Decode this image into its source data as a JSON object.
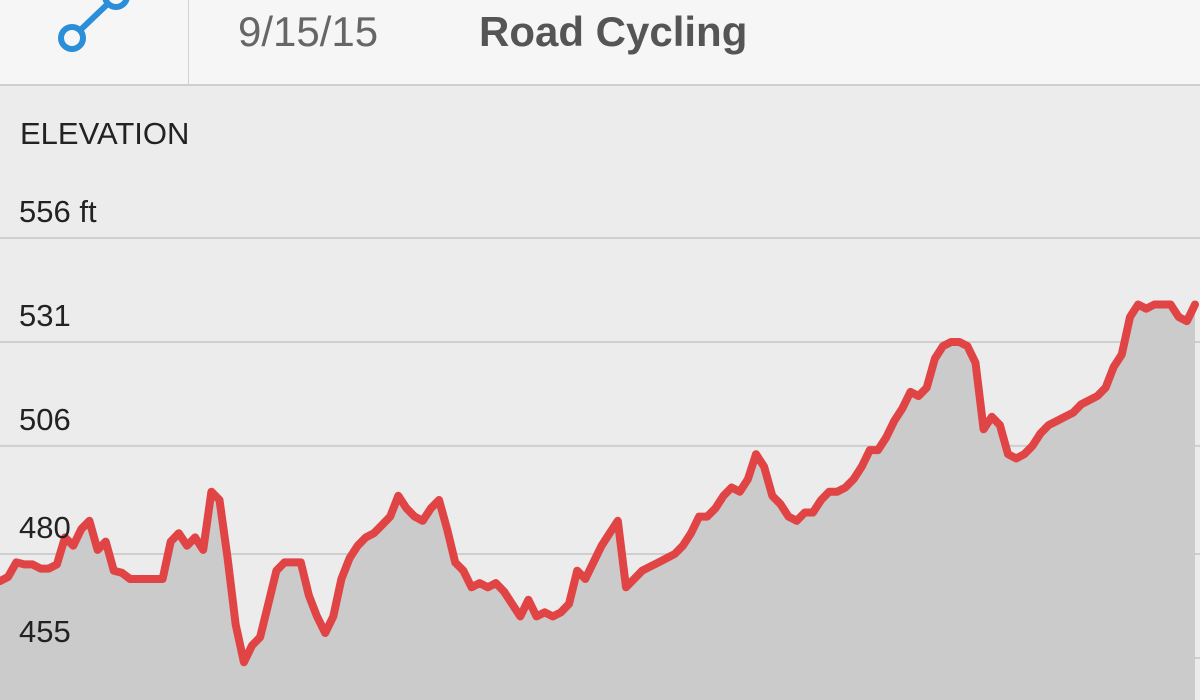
{
  "header": {
    "date": "9/15/15",
    "activity": "Road Cycling",
    "icon": "route-icon"
  },
  "elevation": {
    "title": "ELEVATION"
  },
  "chart_data": {
    "type": "area",
    "title": "ELEVATION",
    "unit": "ft",
    "y_ticks": [
      {
        "value": 556,
        "label": "556 ft"
      },
      {
        "value": 531,
        "label": "531"
      },
      {
        "value": 506,
        "label": "506"
      },
      {
        "value": 480,
        "label": "480"
      },
      {
        "value": 455,
        "label": "455"
      }
    ],
    "ylim": [
      446,
      560
    ],
    "line_color": "#e04444",
    "fill_color": "#cbcbcb",
    "grid": true,
    "values": [
      473.5,
      474.5,
      478,
      477.5,
      477.5,
      476.5,
      476.5,
      477.5,
      484,
      482,
      486,
      488,
      481,
      483,
      476,
      475.5,
      474,
      474,
      474,
      474,
      474,
      483,
      485,
      482,
      484,
      481,
      495,
      493,
      479,
      463,
      454,
      458,
      460,
      468,
      476,
      478,
      478,
      478,
      470,
      465,
      461,
      465,
      474,
      479,
      482,
      484,
      485,
      487,
      489,
      494,
      491,
      489,
      488,
      491,
      493,
      486,
      478,
      476,
      472,
      473,
      472,
      473,
      471,
      468,
      465,
      469,
      465,
      466,
      465,
      466,
      468,
      476,
      474,
      478,
      482,
      485,
      488,
      472,
      474,
      476,
      477,
      478,
      479,
      480,
      482,
      485,
      489,
      489,
      491,
      494,
      496,
      495,
      498,
      504,
      501,
      494,
      492,
      489,
      488,
      490,
      490,
      493,
      495,
      495,
      496,
      498,
      501,
      505,
      505,
      508,
      512,
      515,
      519,
      518,
      520,
      527,
      530,
      531,
      531,
      530,
      526,
      510,
      513,
      511,
      504,
      503,
      504,
      506,
      509,
      511,
      512,
      513,
      514,
      516,
      517,
      518,
      520,
      525,
      528,
      537,
      540,
      539,
      540,
      540,
      540,
      537,
      536,
      540
    ]
  }
}
